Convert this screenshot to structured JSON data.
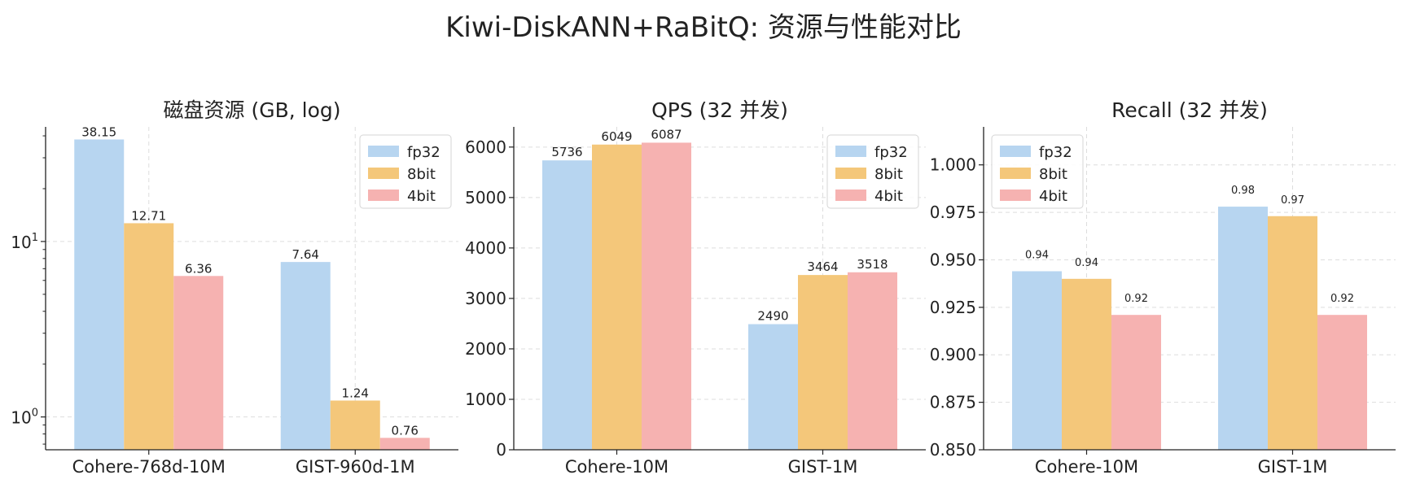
{
  "suptitle": "Kiwi-DiskANN+RaBitQ: 资源与性能对比",
  "colors": {
    "fp32": "#b7d5f0",
    "8bit": "#f4c77a",
    "4bit": "#f6b2b1"
  },
  "chart_data": [
    {
      "type": "bar",
      "title": "磁盘资源 (GB, log)",
      "yscale": "log",
      "ylim": [
        0.65,
        45
      ],
      "yticks": [
        {
          "v": 1,
          "base": "10",
          "exp": "0"
        },
        {
          "v": 10,
          "base": "10",
          "exp": "1"
        }
      ],
      "categories": [
        "Cohere-768d-10M",
        "GIST-960d-1M"
      ],
      "series": [
        {
          "name": "fp32",
          "values": [
            38.15,
            7.64
          ],
          "labels": [
            "38.15",
            "7.64"
          ]
        },
        {
          "name": "8bit",
          "values": [
            12.71,
            1.24
          ],
          "labels": [
            "12.71",
            "1.24"
          ]
        },
        {
          "name": "4bit",
          "values": [
            6.36,
            0.76
          ],
          "labels": [
            "6.36",
            "0.76"
          ]
        }
      ],
      "legend": "top-right",
      "grid": true
    },
    {
      "type": "bar",
      "title": "QPS (32 并发)",
      "yscale": "linear",
      "ylim": [
        0,
        6400
      ],
      "yticks": [
        {
          "v": 0,
          "label": "0"
        },
        {
          "v": 1000,
          "label": "1000"
        },
        {
          "v": 2000,
          "label": "2000"
        },
        {
          "v": 3000,
          "label": "3000"
        },
        {
          "v": 4000,
          "label": "4000"
        },
        {
          "v": 5000,
          "label": "5000"
        },
        {
          "v": 6000,
          "label": "6000"
        }
      ],
      "categories": [
        "Cohere-10M",
        "GIST-1M"
      ],
      "series": [
        {
          "name": "fp32",
          "values": [
            5736,
            2490
          ],
          "labels": [
            "5736",
            "2490"
          ]
        },
        {
          "name": "8bit",
          "values": [
            6049,
            3464
          ],
          "labels": [
            "6049",
            "3464"
          ]
        },
        {
          "name": "4bit",
          "values": [
            6087,
            3518
          ],
          "labels": [
            "6087",
            "3518"
          ]
        }
      ],
      "legend": "top-right",
      "grid": true
    },
    {
      "type": "bar",
      "title": "Recall (32 并发)",
      "yscale": "linear",
      "ylim": [
        0.85,
        1.02
      ],
      "yticks": [
        {
          "v": 0.85,
          "label": "0.850"
        },
        {
          "v": 0.875,
          "label": "0.875"
        },
        {
          "v": 0.9,
          "label": "0.900"
        },
        {
          "v": 0.925,
          "label": "0.925"
        },
        {
          "v": 0.95,
          "label": "0.950"
        },
        {
          "v": 0.975,
          "label": "0.975"
        },
        {
          "v": 1.0,
          "label": "1.000"
        }
      ],
      "categories": [
        "Cohere-10M",
        "GIST-1M"
      ],
      "series": [
        {
          "name": "fp32",
          "values": [
            0.944,
            0.978
          ],
          "labels": [
            "0.94",
            "0.98"
          ]
        },
        {
          "name": "8bit",
          "values": [
            0.94,
            0.973
          ],
          "labels": [
            "0.94",
            "0.97"
          ]
        },
        {
          "name": "4bit",
          "values": [
            0.921,
            0.921
          ],
          "labels": [
            "0.92",
            "0.92"
          ]
        }
      ],
      "legend": "top-left",
      "grid": true
    }
  ]
}
